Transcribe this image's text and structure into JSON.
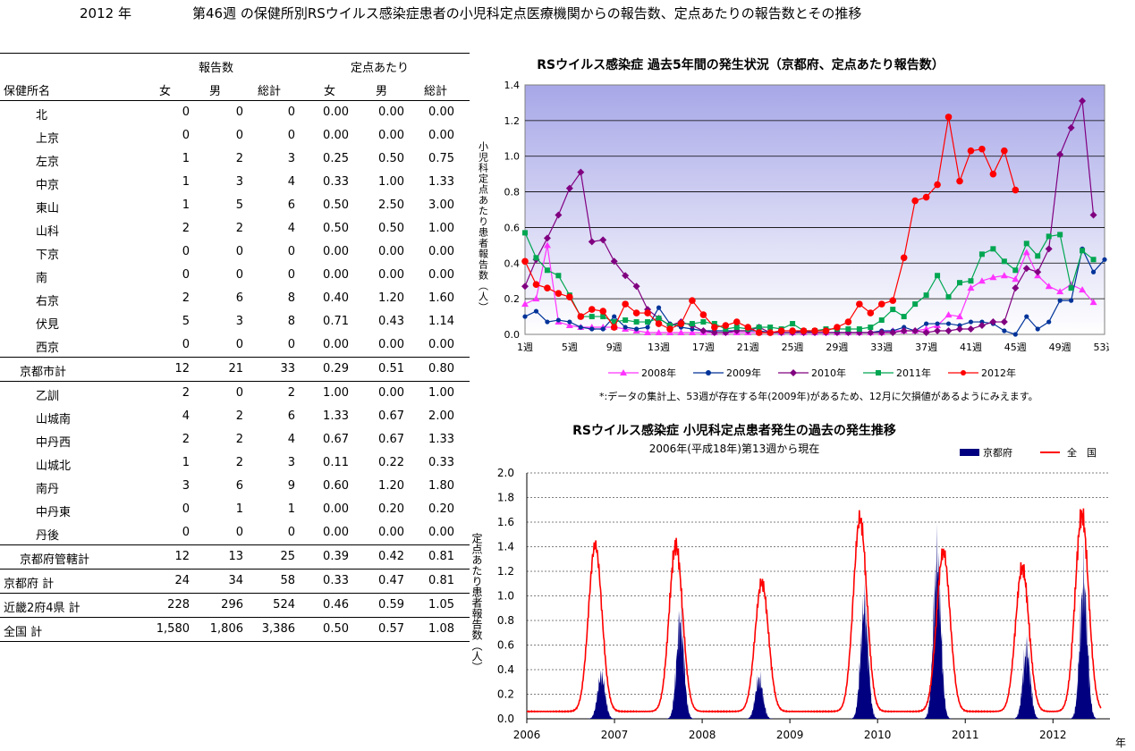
{
  "page": {
    "year_label": "2012 年",
    "title": "第46週 の保健所別RSウイルス感染症患者の小児科定点医療機関からの報告数、定点あたりの報告数とその推移"
  },
  "table": {
    "group_report": "報告数",
    "group_per_site": "定点あたり",
    "col_name": "保健所名",
    "col_f": "女",
    "col_m": "男",
    "col_total": "総計",
    "col_pf": "女",
    "col_pm": "男",
    "col_ptotal": "総計",
    "rows": [
      {
        "name": "北",
        "f": "0",
        "m": "0",
        "t": "0",
        "pf": "0.00",
        "pm": "0.00",
        "pt": "0.00",
        "kind": "item"
      },
      {
        "name": "上京",
        "f": "0",
        "m": "0",
        "t": "0",
        "pf": "0.00",
        "pm": "0.00",
        "pt": "0.00",
        "kind": "item"
      },
      {
        "name": "左京",
        "f": "1",
        "m": "2",
        "t": "3",
        "pf": "0.25",
        "pm": "0.50",
        "pt": "0.75",
        "kind": "item"
      },
      {
        "name": "中京",
        "f": "1",
        "m": "3",
        "t": "4",
        "pf": "0.33",
        "pm": "1.00",
        "pt": "1.33",
        "kind": "item"
      },
      {
        "name": "東山",
        "f": "1",
        "m": "5",
        "t": "6",
        "pf": "0.50",
        "pm": "2.50",
        "pt": "3.00",
        "kind": "item"
      },
      {
        "name": "山科",
        "f": "2",
        "m": "2",
        "t": "4",
        "pf": "0.50",
        "pm": "0.50",
        "pt": "1.00",
        "kind": "item"
      },
      {
        "name": "下京",
        "f": "0",
        "m": "0",
        "t": "0",
        "pf": "0.00",
        "pm": "0.00",
        "pt": "0.00",
        "kind": "item"
      },
      {
        "name": "南",
        "f": "0",
        "m": "0",
        "t": "0",
        "pf": "0.00",
        "pm": "0.00",
        "pt": "0.00",
        "kind": "item"
      },
      {
        "name": "右京",
        "f": "2",
        "m": "6",
        "t": "8",
        "pf": "0.40",
        "pm": "1.20",
        "pt": "1.60",
        "kind": "item"
      },
      {
        "name": "伏見",
        "f": "5",
        "m": "3",
        "t": "8",
        "pf": "0.71",
        "pm": "0.43",
        "pt": "1.14",
        "kind": "item"
      },
      {
        "name": "西京",
        "f": "0",
        "m": "0",
        "t": "0",
        "pf": "0.00",
        "pm": "0.00",
        "pt": "0.00",
        "kind": "item"
      },
      {
        "name": "京都市計",
        "f": "12",
        "m": "21",
        "t": "33",
        "pf": "0.29",
        "pm": "0.51",
        "pt": "0.80",
        "kind": "sub"
      },
      {
        "name": "乙訓",
        "f": "2",
        "m": "0",
        "t": "2",
        "pf": "1.00",
        "pm": "0.00",
        "pt": "1.00",
        "kind": "item"
      },
      {
        "name": "山城南",
        "f": "4",
        "m": "2",
        "t": "6",
        "pf": "1.33",
        "pm": "0.67",
        "pt": "2.00",
        "kind": "item"
      },
      {
        "name": "中丹西",
        "f": "2",
        "m": "2",
        "t": "4",
        "pf": "0.67",
        "pm": "0.67",
        "pt": "1.33",
        "kind": "item"
      },
      {
        "name": "山城北",
        "f": "1",
        "m": "2",
        "t": "3",
        "pf": "0.11",
        "pm": "0.22",
        "pt": "0.33",
        "kind": "item"
      },
      {
        "name": "南丹",
        "f": "3",
        "m": "6",
        "t": "9",
        "pf": "0.60",
        "pm": "1.20",
        "pt": "1.80",
        "kind": "item"
      },
      {
        "name": "中丹東",
        "f": "0",
        "m": "1",
        "t": "1",
        "pf": "0.00",
        "pm": "0.20",
        "pt": "0.20",
        "kind": "item"
      },
      {
        "name": "丹後",
        "f": "0",
        "m": "0",
        "t": "0",
        "pf": "0.00",
        "pm": "0.00",
        "pt": "0.00",
        "kind": "item"
      },
      {
        "name": "京都府管轄計",
        "f": "12",
        "m": "13",
        "t": "25",
        "pf": "0.39",
        "pm": "0.42",
        "pt": "0.81",
        "kind": "sub"
      },
      {
        "name": "京都府  計",
        "f": "24",
        "m": "34",
        "t": "58",
        "pf": "0.33",
        "pm": "0.47",
        "pt": "0.81",
        "kind": "tot"
      },
      {
        "name": "近畿2府4県  計",
        "f": "228",
        "m": "296",
        "t": "524",
        "pf": "0.46",
        "pm": "0.59",
        "pt": "1.05",
        "kind": "tot"
      },
      {
        "name": "全国  計",
        "f": "1,580",
        "m": "1,806",
        "t": "3,386",
        "pf": "0.50",
        "pm": "0.57",
        "pt": "1.08",
        "kind": "tot"
      }
    ]
  },
  "chart_data": [
    {
      "type": "line",
      "title": "RSウイルス感染症  過去5年間の発生状況（京都府、定点あたり報告数）",
      "ylabel": "小児科定点あたり患者報告数（人）",
      "xlabel": "",
      "ylim": [
        0,
        1.4
      ],
      "yticks": [
        "0.0",
        "0.2",
        "0.4",
        "0.6",
        "0.8",
        "1.0",
        "1.2",
        "1.4"
      ],
      "xticks": [
        "1週",
        "5週",
        "9週",
        "13週",
        "17週",
        "21週",
        "25週",
        "29週",
        "33週",
        "37週",
        "41週",
        "45週",
        "49週",
        "53週"
      ],
      "grid": true,
      "legend": "bottom",
      "note": "*:データの集計上、53週が存在する年(2009年)があるため、12月に欠損値があるようにみえます。",
      "x_weeks": [
        1,
        2,
        3,
        4,
        5,
        6,
        7,
        8,
        9,
        10,
        11,
        12,
        13,
        14,
        15,
        16,
        17,
        18,
        19,
        20,
        21,
        22,
        23,
        24,
        25,
        26,
        27,
        28,
        29,
        30,
        31,
        32,
        33,
        34,
        35,
        36,
        37,
        38,
        39,
        40,
        41,
        42,
        43,
        44,
        45,
        46,
        47,
        48,
        49,
        50,
        51,
        52,
        53
      ],
      "series": [
        {
          "name": "2008年",
          "color": "#ff33ff",
          "marker": "triangle",
          "values": [
            0.17,
            0.2,
            0.5,
            0.07,
            0.05,
            0.04,
            0.04,
            0.04,
            0.04,
            0.03,
            0.02,
            0.01,
            0.01,
            0.01,
            0.01,
            0.01,
            0.01,
            0.01,
            0.01,
            0.01,
            0.01,
            0.01,
            0.01,
            0.01,
            0.01,
            0.01,
            0.01,
            0.01,
            0.01,
            0.01,
            0.01,
            0.01,
            0.01,
            0.02,
            0.02,
            0.02,
            0.03,
            0.05,
            0.11,
            0.1,
            0.26,
            0.3,
            0.32,
            0.33,
            0.31,
            0.46,
            0.33,
            0.27,
            0.24,
            0.28,
            0.25,
            0.18,
            null
          ]
        },
        {
          "name": "2009年",
          "color": "#003399",
          "marker": "circle",
          "values": [
            0.1,
            0.13,
            0.07,
            0.08,
            0.07,
            0.04,
            0.03,
            0.03,
            0.1,
            0.04,
            0.03,
            0.04,
            0.15,
            0.06,
            0.04,
            0.03,
            0.02,
            0.02,
            0.02,
            0.02,
            0.02,
            0.02,
            0.01,
            0.01,
            0.01,
            0.02,
            0.01,
            0.01,
            0.01,
            0.01,
            0.01,
            0.01,
            0.02,
            0.02,
            0.04,
            0.02,
            0.06,
            0.06,
            0.06,
            0.05,
            0.07,
            0.07,
            0.06,
            0.02,
            0.0,
            0.1,
            0.03,
            0.07,
            0.19,
            0.19,
            0.48,
            0.35,
            0.42
          ]
        },
        {
          "name": "2010年",
          "color": "#800080",
          "marker": "diamond",
          "values": [
            0.27,
            0.42,
            0.54,
            0.67,
            0.82,
            0.91,
            0.52,
            0.53,
            0.41,
            0.33,
            0.27,
            0.14,
            0.09,
            0.05,
            0.07,
            0.05,
            0.02,
            0.01,
            0.01,
            0.02,
            0.02,
            0.04,
            0.01,
            0.01,
            0.01,
            0.01,
            0.01,
            0.01,
            0.01,
            0.01,
            0.01,
            0.01,
            0.01,
            0.01,
            0.02,
            0.02,
            0.01,
            0.02,
            0.02,
            0.03,
            0.03,
            0.05,
            0.07,
            0.07,
            0.26,
            0.37,
            0.35,
            0.48,
            1.01,
            1.16,
            1.31,
            0.67,
            null
          ]
        },
        {
          "name": "2011年",
          "color": "#00a651",
          "marker": "square",
          "values": [
            0.57,
            0.43,
            0.36,
            0.33,
            0.22,
            0.1,
            0.1,
            0.1,
            0.07,
            0.08,
            0.07,
            0.07,
            0.09,
            0.05,
            0.06,
            0.06,
            0.07,
            0.06,
            0.03,
            0.04,
            0.03,
            0.04,
            0.04,
            0.03,
            0.06,
            0.02,
            0.02,
            0.03,
            0.03,
            0.03,
            0.03,
            0.04,
            0.08,
            0.14,
            0.1,
            0.17,
            0.22,
            0.33,
            0.21,
            0.29,
            0.3,
            0.45,
            0.48,
            0.41,
            0.36,
            0.51,
            0.44,
            0.55,
            0.56,
            0.26,
            0.47,
            0.42,
            null
          ]
        },
        {
          "name": "2012年",
          "color": "#ff0000",
          "marker": "circle",
          "values": [
            0.41,
            0.28,
            0.26,
            0.23,
            0.21,
            0.1,
            0.14,
            0.13,
            0.04,
            0.17,
            0.12,
            0.12,
            0.06,
            0.03,
            0.06,
            0.19,
            0.11,
            0.04,
            0.05,
            0.07,
            0.04,
            0.01,
            0.01,
            0.02,
            0.02,
            0.02,
            0.02,
            0.02,
            0.04,
            0.07,
            0.17,
            0.12,
            0.17,
            0.19,
            0.43,
            0.75,
            0.77,
            0.84,
            1.22,
            0.86,
            1.03,
            1.04,
            0.9,
            1.03,
            0.81,
            null,
            null,
            null,
            null,
            null,
            null,
            null,
            null
          ]
        }
      ]
    },
    {
      "type": "area",
      "title": "RSウイルス感染症  小児科定点患者発生の過去の発生推移",
      "subtitle": "2006年(平成18年)第13週から現在",
      "ylabel": "定点あたり患者報告数（人）",
      "xlabel": "年",
      "ylim": [
        0,
        2.0
      ],
      "yticks": [
        "0.0",
        "0.2",
        "0.4",
        "0.6",
        "0.8",
        "1.0",
        "1.2",
        "1.4",
        "1.6",
        "1.8",
        "2.0"
      ],
      "xticks": [
        "2006",
        "2007",
        "2008",
        "2009",
        "2010",
        "2011",
        "2012"
      ],
      "grid": true,
      "legend": "top-right",
      "series": [
        {
          "name": "京都府",
          "color": "#000080",
          "kind": "area",
          "peaks": [
            [
              2006.85,
              0.35
            ],
            [
              2007.75,
              0.78
            ],
            [
              2008.65,
              0.32
            ],
            [
              2009.85,
              0.9
            ],
            [
              2010.68,
              1.25
            ],
            [
              2011.7,
              0.55
            ],
            [
              2012.35,
              1.08
            ]
          ]
        },
        {
          "name": "全　国",
          "color": "#ff0000",
          "kind": "line",
          "peaks": [
            [
              2006.78,
              1.35
            ],
            [
              2007.7,
              1.35
            ],
            [
              2008.68,
              1.05
            ],
            [
              2009.8,
              1.57
            ],
            [
              2010.75,
              1.3
            ],
            [
              2011.65,
              1.17
            ],
            [
              2012.33,
              1.6
            ]
          ]
        }
      ]
    }
  ]
}
